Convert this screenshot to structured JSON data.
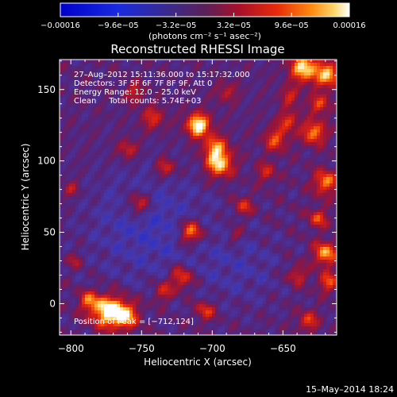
{
  "chart_data": {
    "type": "heatmap",
    "title": "Reconstructed RHESSI Image",
    "xlabel": "Heliocentric X (arcsec)",
    "ylabel": "Heliocentric Y (arcsec)",
    "xlim": [
      -808,
      -612
    ],
    "ylim": [
      -22,
      171
    ],
    "x_ticks": [
      -800,
      -750,
      -700,
      -650
    ],
    "x_tick_labels": [
      "−800",
      "−750",
      "−700",
      "−650"
    ],
    "y_ticks": [
      0,
      50,
      100,
      150
    ],
    "y_tick_labels": [
      "0",
      "50",
      "100",
      "150"
    ],
    "colorbar": {
      "min": -0.00016,
      "max": 0.00016,
      "ticks": [
        -0.00016,
        -9.6e-05,
        -3.2e-05,
        3.2e-05,
        9.6e-05,
        0.00016
      ],
      "tick_labels": [
        "−0.00016",
        "−9.6e−05",
        "−3.2e−05",
        "3.2e−05",
        "9.6e−05",
        "0.00016"
      ],
      "unit_label": "(photons cm⁻² s⁻¹ asec⁻²)"
    },
    "annotations": [
      "27–Aug–2012 15:11:36.000 to 15:17:32.000",
      "Detectors: 3F 5F 6F 7F 8F 9F, Att 0",
      "Energy Range: 12.0 – 25.0 keV",
      "Clean     Total counts: 5.74E+03"
    ],
    "peak_text": "Position of Peak = [−712,124]",
    "peak": [
      -712,
      124
    ],
    "sources": [
      {
        "x": -710,
        "y": 125,
        "amp": 1.0,
        "r": 6
      },
      {
        "x": -698,
        "y": 110,
        "amp": 0.6,
        "r": 6
      },
      {
        "x": -695,
        "y": 98,
        "amp": 0.85,
        "r": 7
      },
      {
        "x": -715,
        "y": 50,
        "amp": 0.75,
        "r": 6
      },
      {
        "x": -752,
        "y": 70,
        "amp": 0.55,
        "r": 6
      },
      {
        "x": -733,
        "y": 95,
        "amp": 0.5,
        "r": 5
      },
      {
        "x": -760,
        "y": 108,
        "amp": 0.45,
        "r": 5
      },
      {
        "x": -742,
        "y": 130,
        "amp": 0.45,
        "r": 6
      },
      {
        "x": -755,
        "y": 148,
        "amp": 0.4,
        "r": 5
      },
      {
        "x": -775,
        "y": -5,
        "amp": 0.9,
        "r": 8
      },
      {
        "x": -762,
        "y": -8,
        "amp": 0.8,
        "r": 7
      },
      {
        "x": -788,
        "y": 2,
        "amp": 0.5,
        "r": 5
      },
      {
        "x": -722,
        "y": 18,
        "amp": 0.6,
        "r": 6
      },
      {
        "x": -735,
        "y": 8,
        "amp": 0.45,
        "r": 5
      },
      {
        "x": -705,
        "y": -5,
        "amp": 0.5,
        "r": 5
      },
      {
        "x": -678,
        "y": 68,
        "amp": 0.45,
        "r": 5
      },
      {
        "x": -684,
        "y": 48,
        "amp": 0.35,
        "r": 4
      },
      {
        "x": -655,
        "y": 115,
        "amp": 0.55,
        "r": 6
      },
      {
        "x": -646,
        "y": 128,
        "amp": 0.5,
        "r": 5
      },
      {
        "x": -628,
        "y": 120,
        "amp": 0.7,
        "r": 6
      },
      {
        "x": -624,
        "y": 140,
        "amp": 0.55,
        "r": 5
      },
      {
        "x": -635,
        "y": 165,
        "amp": 0.9,
        "r": 7
      },
      {
        "x": -618,
        "y": 160,
        "amp": 0.8,
        "r": 6
      },
      {
        "x": -645,
        "y": 145,
        "amp": 0.4,
        "r": 5
      },
      {
        "x": -620,
        "y": 85,
        "amp": 0.7,
        "r": 6
      },
      {
        "x": -625,
        "y": 60,
        "amp": 0.5,
        "r": 5
      },
      {
        "x": -620,
        "y": 35,
        "amp": 0.75,
        "r": 6
      },
      {
        "x": -618,
        "y": 15,
        "amp": 0.55,
        "r": 5
      },
      {
        "x": -640,
        "y": 20,
        "amp": 0.45,
        "r": 5
      },
      {
        "x": -632,
        "y": -12,
        "amp": 0.5,
        "r": 5
      },
      {
        "x": -800,
        "y": 80,
        "amp": 0.35,
        "r": 4
      },
      {
        "x": -797,
        "y": 30,
        "amp": 0.3,
        "r": 4
      },
      {
        "x": -690,
        "y": 148,
        "amp": 0.35,
        "r": 5
      },
      {
        "x": -662,
        "y": 92,
        "amp": 0.4,
        "r": 5
      }
    ]
  },
  "footer": {
    "date": "15–May–2014 18:24"
  }
}
